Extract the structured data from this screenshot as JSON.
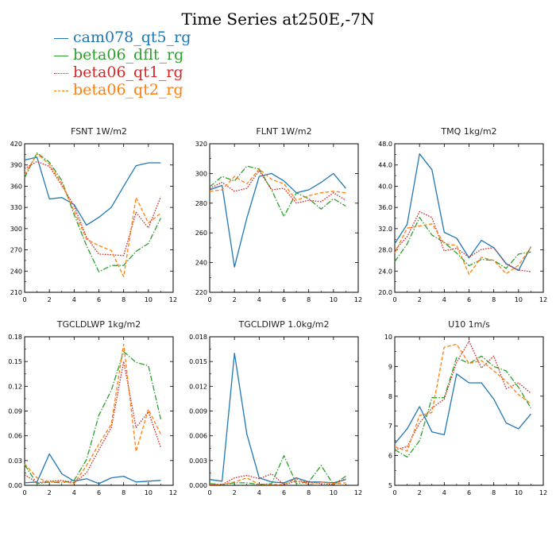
{
  "title": "Time Series at250E,-7N",
  "series": [
    {
      "name": "cam078_qt5_rg",
      "color": "#1f77b4",
      "dash": "solid"
    },
    {
      "name": "beta06_dflt_rg",
      "color": "#2ca02c",
      "dash": "dashdot"
    },
    {
      "name": "beta06_qt1_rg",
      "color": "#d62728",
      "dash": "dotted"
    },
    {
      "name": "beta06_qt2_rg",
      "color": "#ff7f0e",
      "dash": "dashed"
    }
  ],
  "chart_data": [
    {
      "type": "line",
      "title": "FSNT   1W/m2",
      "x": [
        0,
        1,
        2,
        3,
        4,
        5,
        6,
        7,
        8,
        9,
        10,
        11
      ],
      "xlim": [
        0,
        12
      ],
      "xticks": [
        0,
        2,
        4,
        6,
        8,
        10,
        12
      ],
      "ylim": [
        210,
        420
      ],
      "yticks": [
        210,
        240,
        270,
        300,
        330,
        360,
        390,
        420
      ],
      "ytick_labels": [
        "210",
        "240",
        "270",
        "300",
        "330",
        "360",
        "390",
        "420"
      ],
      "series": [
        {
          "name": "cam078_qt5_rg",
          "values": [
            397,
            401,
            342,
            344,
            334,
            305,
            316,
            330,
            360,
            389,
            393,
            393
          ]
        },
        {
          "name": "beta06_dflt_rg",
          "values": [
            372,
            407,
            394,
            368,
            320,
            276,
            239,
            248,
            248,
            268,
            279,
            315
          ]
        },
        {
          "name": "beta06_qt1_rg",
          "values": [
            385,
            395,
            388,
            361,
            332,
            288,
            264,
            263,
            262,
            323,
            301,
            345
          ]
        },
        {
          "name": "beta06_qt2_rg",
          "values": [
            376,
            406,
            391,
            364,
            325,
            285,
            276,
            269,
            232,
            344,
            308,
            322
          ]
        }
      ]
    },
    {
      "type": "line",
      "title": "FLNT   1W/m2",
      "x": [
        0,
        1,
        2,
        3,
        4,
        5,
        6,
        7,
        8,
        9,
        10,
        11
      ],
      "xlim": [
        0,
        12
      ],
      "xticks": [
        0,
        2,
        4,
        6,
        8,
        10,
        12
      ],
      "ylim": [
        220,
        320
      ],
      "yticks": [
        220,
        240,
        260,
        280,
        300,
        320
      ],
      "ytick_labels": [
        "220",
        "240",
        "260",
        "280",
        "300",
        "320"
      ],
      "series": [
        {
          "name": "cam078_qt5_rg",
          "values": [
            289,
            292,
            237,
            270,
            298,
            300,
            295,
            287,
            289,
            294,
            300,
            290
          ]
        },
        {
          "name": "beta06_dflt_rg",
          "values": [
            291,
            298,
            295,
            305,
            303,
            289,
            271,
            287,
            283,
            276,
            283,
            278
          ]
        },
        {
          "name": "beta06_qt1_rg",
          "values": [
            290,
            294,
            288,
            290,
            302,
            289,
            290,
            280,
            282,
            281,
            287,
            282
          ]
        },
        {
          "name": "beta06_qt2_rg",
          "values": [
            288,
            289,
            298,
            293,
            303,
            296,
            293,
            282,
            285,
            287,
            288,
            287
          ]
        }
      ]
    },
    {
      "type": "line",
      "title": "TMQ   1kg/m2",
      "x": [
        0,
        1,
        2,
        3,
        4,
        5,
        6,
        7,
        8,
        9,
        10,
        11
      ],
      "xlim": [
        0,
        12
      ],
      "xticks": [
        0,
        2,
        4,
        6,
        8,
        10,
        12
      ],
      "ylim": [
        20,
        48
      ],
      "yticks": [
        20,
        24,
        28,
        32,
        36,
        40,
        44,
        48
      ],
      "ytick_labels": [
        "20.0",
        "24.0",
        "28.0",
        "32.0",
        "36.0",
        "40.0",
        "44.0",
        "48.0"
      ],
      "series": [
        {
          "name": "cam078_qt5_rg",
          "values": [
            29.2,
            32.8,
            46.1,
            43.1,
            31.3,
            30.2,
            26.5,
            29.8,
            28.4,
            25.4,
            24.1,
            28.6
          ]
        },
        {
          "name": "beta06_dflt_rg",
          "values": [
            25.8,
            29.1,
            34.1,
            30.8,
            29.4,
            27.4,
            25.0,
            26.2,
            26.0,
            24.5,
            27.2,
            27.6
          ]
        },
        {
          "name": "beta06_qt1_rg",
          "values": [
            27.9,
            30.5,
            35.2,
            34.1,
            27.8,
            28.3,
            26.6,
            28.1,
            28.4,
            25.3,
            24.2,
            23.9
          ]
        },
        {
          "name": "beta06_qt2_rg",
          "values": [
            27.4,
            32.1,
            32.5,
            32.9,
            29.2,
            28.8,
            23.4,
            26.6,
            26.0,
            23.5,
            25.1,
            28.5
          ]
        }
      ]
    },
    {
      "type": "line",
      "title": "TGCLDLWP   1kg/m2",
      "x": [
        0,
        1,
        2,
        3,
        4,
        5,
        6,
        7,
        8,
        9,
        10,
        11
      ],
      "xlim": [
        0,
        12
      ],
      "xticks": [
        0,
        2,
        4,
        6,
        8,
        10,
        12
      ],
      "ylim": [
        0,
        0.18
      ],
      "yticks": [
        0,
        0.03,
        0.06,
        0.09,
        0.12,
        0.15,
        0.18
      ],
      "ytick_labels": [
        "0.00",
        "0.03",
        "0.06",
        "0.09",
        "0.12",
        "0.15",
        "0.18"
      ],
      "series": [
        {
          "name": "cam078_qt5_rg",
          "values": [
            0.003,
            0.004,
            0.038,
            0.014,
            0.005,
            0.008,
            0.002,
            0.009,
            0.011,
            0.004,
            0.005,
            0.006
          ]
        },
        {
          "name": "beta06_dflt_rg",
          "values": [
            0.025,
            0.002,
            0.004,
            0.003,
            0.006,
            0.031,
            0.085,
            0.115,
            0.162,
            0.149,
            0.145,
            0.08
          ]
        },
        {
          "name": "beta06_qt1_rg",
          "values": [
            0.013,
            0.003,
            0.005,
            0.006,
            0.003,
            0.015,
            0.043,
            0.07,
            0.15,
            0.07,
            0.089,
            0.046
          ]
        },
        {
          "name": "beta06_qt2_rg",
          "values": [
            0.026,
            0.009,
            0.004,
            0.005,
            0.002,
            0.024,
            0.05,
            0.074,
            0.171,
            0.041,
            0.092,
            0.062
          ]
        }
      ]
    },
    {
      "type": "line",
      "title": "TGCLDIWP   1.0kg/m2",
      "x": [
        0,
        1,
        2,
        3,
        4,
        5,
        6,
        7,
        8,
        9,
        10,
        11
      ],
      "xlim": [
        0,
        12
      ],
      "xticks": [
        0,
        2,
        4,
        6,
        8,
        10,
        12
      ],
      "ylim": [
        0,
        0.018
      ],
      "yticks": [
        0,
        0.003,
        0.006,
        0.009,
        0.012,
        0.015,
        0.018
      ],
      "ytick_labels": [
        "0.000",
        "0.003",
        "0.006",
        "0.009",
        "0.012",
        "0.015",
        "0.018"
      ],
      "series": [
        {
          "name": "cam078_qt5_rg",
          "values": [
            0.0007,
            0.0005,
            0.016,
            0.0062,
            0.0009,
            0.0004,
            0.0003,
            0.0009,
            0.0004,
            0.0004,
            0.0003,
            0.0007
          ]
        },
        {
          "name": "beta06_dflt_rg",
          "values": [
            0.0002,
            0.0001,
            0.0003,
            0.0003,
            0.0001,
            0.0002,
            0.0036,
            0.0002,
            0.0004,
            0.0024,
            0.0001,
            0.0011
          ]
        },
        {
          "name": "beta06_qt1_rg",
          "values": [
            0.0001,
            0.0001,
            0.0009,
            0.0012,
            0.0008,
            0.0014,
            0.0001,
            0.0005,
            0.0004,
            0.0002,
            0.0001,
            0.0008
          ]
        },
        {
          "name": "beta06_qt2_rg",
          "values": [
            0.0001,
            0.0001,
            0.0004,
            0.0009,
            0.0001,
            0.0001,
            0.0001,
            0.0008,
            0.0001,
            0.0004,
            0.0002,
            0.0003
          ]
        }
      ]
    },
    {
      "type": "line",
      "title": "U10   1m/s",
      "x": [
        0,
        1,
        2,
        3,
        4,
        5,
        6,
        7,
        8,
        9,
        10,
        11
      ],
      "xlim": [
        0,
        12
      ],
      "xticks": [
        0,
        2,
        4,
        6,
        8,
        10,
        12
      ],
      "ylim": [
        5,
        10
      ],
      "yticks": [
        5,
        6,
        7,
        8,
        9,
        10
      ],
      "ytick_labels": [
        "5",
        "6",
        "7",
        "8",
        "9",
        "10"
      ],
      "series": [
        {
          "name": "cam078_qt5_rg",
          "values": [
            6.4,
            6.9,
            7.65,
            6.8,
            6.7,
            8.75,
            8.45,
            8.45,
            7.9,
            7.1,
            6.9,
            7.4
          ]
        },
        {
          "name": "beta06_dflt_rg",
          "values": [
            6.2,
            5.95,
            6.5,
            7.95,
            7.95,
            9.3,
            9.1,
            9.35,
            9.0,
            8.85,
            8.3,
            7.6
          ]
        },
        {
          "name": "beta06_qt1_rg",
          "values": [
            6.2,
            6.3,
            7.1,
            7.6,
            7.9,
            9.15,
            9.85,
            8.95,
            9.35,
            8.25,
            8.45,
            8.1
          ]
        },
        {
          "name": "beta06_qt2_rg",
          "values": [
            6.3,
            6.15,
            7.35,
            7.45,
            9.65,
            9.75,
            9.1,
            9.2,
            8.85,
            8.5,
            8.05,
            7.75
          ]
        }
      ]
    }
  ]
}
